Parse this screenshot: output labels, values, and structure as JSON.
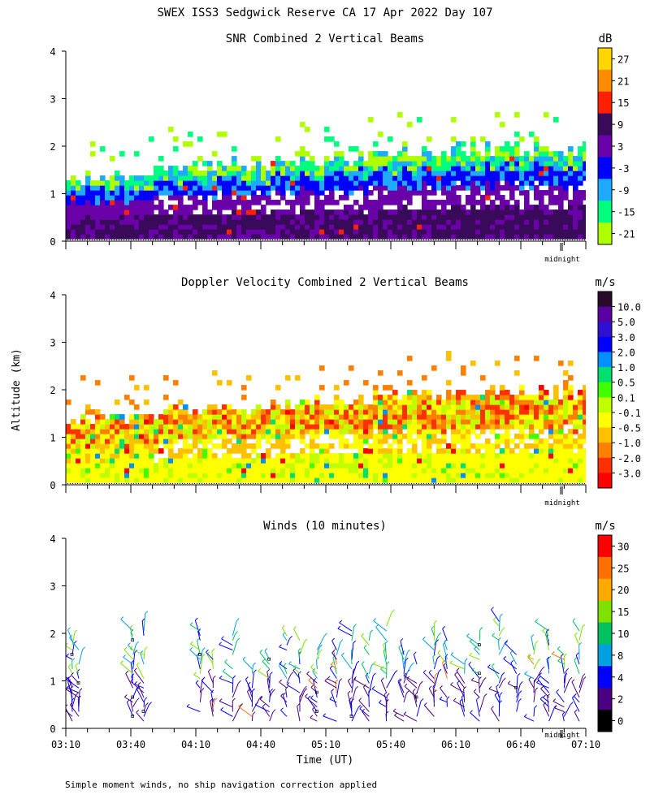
{
  "figure": {
    "title": "SWEX ISS3 Sedgwick Reserve CA  17 Apr 2022 Day 107",
    "ylabel": "Altitude (km)",
    "footnote": "Simple moment winds, no ship navigation correction applied",
    "midnight_label": "midnight"
  },
  "colors": {
    "background": "#ffffff",
    "axis": "#000000"
  },
  "chart_data": [
    {
      "type": "heatmap",
      "title": "SNR Combined 2 Vertical Beams",
      "unit": "dB",
      "y_ticks": [
        "0",
        "1",
        "2",
        "3",
        "4"
      ],
      "ylim": [
        0,
        4
      ],
      "xlim_minutes": [
        190,
        430
      ],
      "colorbar_labels": [
        "27",
        "21",
        "15",
        "9",
        "3",
        "-3",
        "-9",
        "-15",
        "-21"
      ],
      "colorbar_colors": [
        "#ffd700",
        "#ff8c00",
        "#ff2000",
        "#3a0a5a",
        "#6a00a8",
        "#0000ff",
        "#1eaaff",
        "#00ff7f",
        "#b0ff00"
      ],
      "echo_top_km": 1.3,
      "echo_top_end_km": 1.9
    },
    {
      "type": "heatmap",
      "title": "Doppler Velocity Combined 2 Vertical Beams",
      "unit": "m/s",
      "y_ticks": [
        "0",
        "1",
        "2",
        "3",
        "4"
      ],
      "ylim": [
        0,
        4
      ],
      "xlim_minutes": [
        190,
        430
      ],
      "colorbar_labels": [
        "10.0",
        "5.0",
        "3.0",
        "2.0",
        "1.0",
        "0.5",
        "0.1",
        "-0.1",
        "-0.5",
        "-1.0",
        "-2.0",
        "-3.0"
      ],
      "colorbar_colors": [
        "#2a0a2a",
        "#5a00a0",
        "#3010d0",
        "#0000ff",
        "#0090ff",
        "#00e070",
        "#40ff00",
        "#c0ff00",
        "#ffff00",
        "#ffc000",
        "#ff8000",
        "#ff3000",
        "#ff0000"
      ],
      "echo_top_km": 1.3,
      "echo_top_end_km": 1.9
    },
    {
      "type": "scatter",
      "title": "Winds (10 minutes)",
      "unit": "m/s",
      "xlabel": "Time (UT)",
      "x_tick_labels": [
        "03:10",
        "03:40",
        "04:10",
        "04:40",
        "05:10",
        "05:40",
        "06:10",
        "06:40",
        "07:10"
      ],
      "y_ticks": [
        "0",
        "1",
        "2",
        "3",
        "4"
      ],
      "ylim": [
        0,
        4
      ],
      "xlim_minutes": [
        190,
        430
      ],
      "colorbar_labels": [
        "30",
        "25",
        "20",
        "15",
        "10",
        "8",
        "4",
        "2",
        "0"
      ],
      "colorbar_colors": [
        "#ff0000",
        "#ff7000",
        "#ffaa00",
        "#80e000",
        "#00c060",
        "#00a0e0",
        "#0000ff",
        "#4a0080",
        "#000000"
      ],
      "profile_times_minutes": [
        193,
        196,
        221,
        226,
        252,
        258,
        267,
        276,
        284,
        292,
        298,
        306,
        315,
        322,
        330,
        338,
        346,
        352,
        360,
        366,
        374,
        381,
        390,
        398,
        406,
        413,
        420,
        427
      ]
    }
  ]
}
